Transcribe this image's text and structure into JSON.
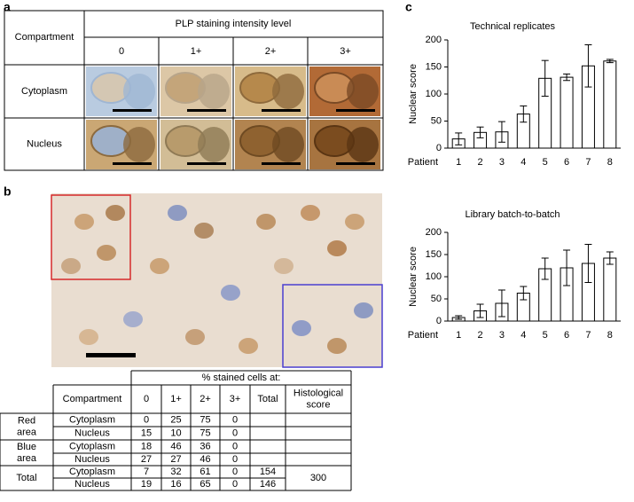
{
  "panel_labels": {
    "a": "a",
    "b": "b",
    "c": "c"
  },
  "table_a": {
    "header": "PLP staining intensity level",
    "row_header": "Compartment",
    "levels": [
      "0",
      "1+",
      "2+",
      "3+"
    ],
    "rows": [
      "Cytoplasm",
      "Nucleus"
    ]
  },
  "table_b": {
    "group_header": "% stained cells at:",
    "columns": [
      "Compartment",
      "0",
      "1+",
      "2+",
      "3+",
      "Total",
      "Histological score"
    ],
    "groups": [
      {
        "label": "Red area",
        "rows": [
          [
            "Cytoplasm",
            0,
            25,
            75,
            0
          ],
          [
            "Nucleus",
            15,
            10,
            75,
            0
          ]
        ]
      },
      {
        "label": "Blue area",
        "rows": [
          [
            "Cytoplasm",
            18,
            46,
            36,
            0
          ],
          [
            "Nucleus",
            27,
            27,
            46,
            0
          ]
        ]
      },
      {
        "label": "Total",
        "rows": [
          [
            "Cytoplasm",
            7,
            32,
            61,
            0,
            154
          ],
          [
            "Nucleus",
            19,
            16,
            65,
            0,
            146
          ]
        ],
        "score": 300
      }
    ]
  },
  "chart_data": [
    {
      "type": "bar",
      "title": "Technical replicates",
      "y_label": "Nuclear score",
      "x_label": "Patient",
      "categories": [
        "1",
        "2",
        "3",
        "4",
        "5",
        "6",
        "7",
        "8"
      ],
      "values": [
        17,
        29,
        30,
        63,
        129,
        131,
        152,
        161
      ],
      "errors": [
        11,
        10,
        19,
        15,
        33,
        6,
        39,
        3
      ],
      "color": "#ffffff",
      "ylim": [
        0,
        200
      ],
      "yticks": [
        0,
        50,
        100,
        150,
        200
      ]
    },
    {
      "type": "bar",
      "title": "Library batch-to-batch",
      "y_label": "Nuclear score",
      "x_label": "Patient",
      "categories": [
        "1",
        "2",
        "3",
        "4",
        "5",
        "6",
        "7",
        "8"
      ],
      "values": [
        8,
        23,
        40,
        63,
        118,
        120,
        130,
        142
      ],
      "errors": [
        4,
        15,
        30,
        15,
        24,
        40,
        43,
        14
      ],
      "color": "#ffffff",
      "ylim": [
        0,
        200
      ],
      "yticks": [
        0,
        50,
        100,
        150,
        200
      ]
    }
  ]
}
